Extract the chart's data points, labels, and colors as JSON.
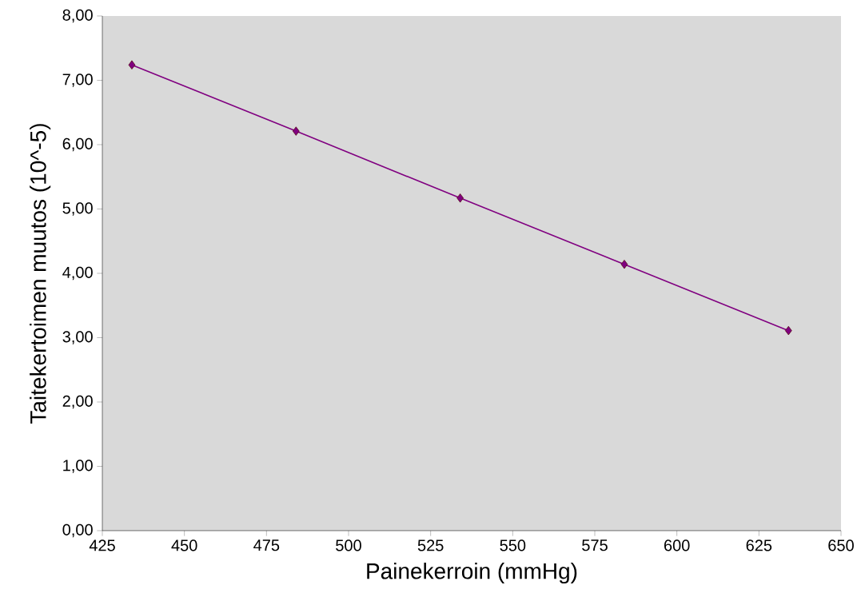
{
  "chart_data": {
    "type": "line",
    "xlabel": "Painekerroin (mmHg)",
    "ylabel": "Taitekertoimen muutos (10^-5)",
    "x": [
      434,
      484,
      534,
      584,
      634
    ],
    "series": [
      {
        "color": "#800080",
        "values": [
          7.24,
          6.21,
          5.17,
          4.14,
          3.11
        ]
      }
    ],
    "xlim": [
      425,
      650
    ],
    "xticks": [
      425,
      450,
      475,
      500,
      525,
      550,
      575,
      600,
      625,
      650
    ],
    "ylim": [
      0,
      8
    ],
    "yticks": [
      {
        "value": 0,
        "label": "0,00"
      },
      {
        "value": 1,
        "label": "1,00"
      },
      {
        "value": 2,
        "label": "2,00"
      },
      {
        "value": 3,
        "label": "3,00"
      },
      {
        "value": 4,
        "label": "4,00"
      },
      {
        "value": 5,
        "label": "5,00"
      },
      {
        "value": 6,
        "label": "6,00"
      },
      {
        "value": 7,
        "label": "7,00"
      },
      {
        "value": 8,
        "label": "8,00"
      }
    ],
    "marker": "diamond",
    "line_style": "solid"
  }
}
